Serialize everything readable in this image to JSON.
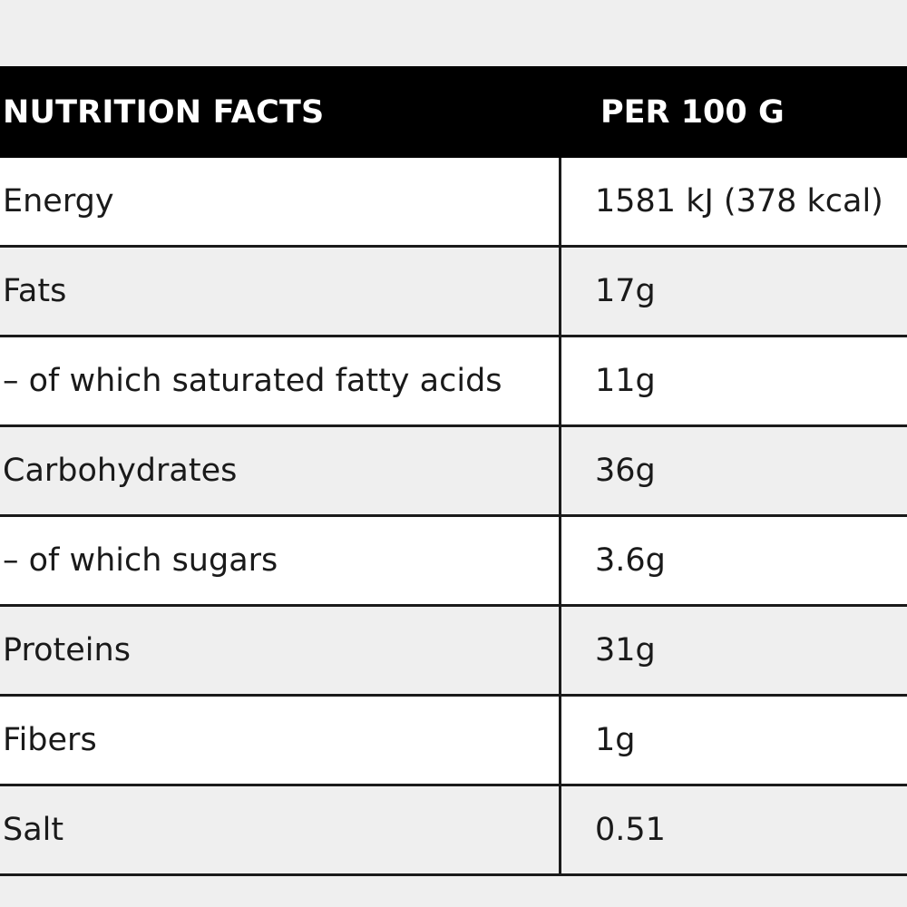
{
  "header": {
    "label": "NUTRITION FACTS",
    "value": "PER 100 G"
  },
  "rows": [
    {
      "label": "Energy",
      "value": "1581 kJ (378 kcal)"
    },
    {
      "label": "Fats",
      "value": "17g"
    },
    {
      "label": "– of which saturated fatty acids",
      "value": "11g"
    },
    {
      "label": "Carbohydrates",
      "value": "36g"
    },
    {
      "label": "– of which sugars",
      "value": "3.6g"
    },
    {
      "label": "Proteins",
      "value": "31g"
    },
    {
      "label": "Fibers",
      "value": "1g"
    },
    {
      "label": "Salt",
      "value": "0.51"
    }
  ],
  "colors": {
    "header_bg": "#000000",
    "header_text": "#ffffff",
    "row_white": "#ffffff",
    "row_gray": "#efefef",
    "border": "#1a1a1a"
  }
}
